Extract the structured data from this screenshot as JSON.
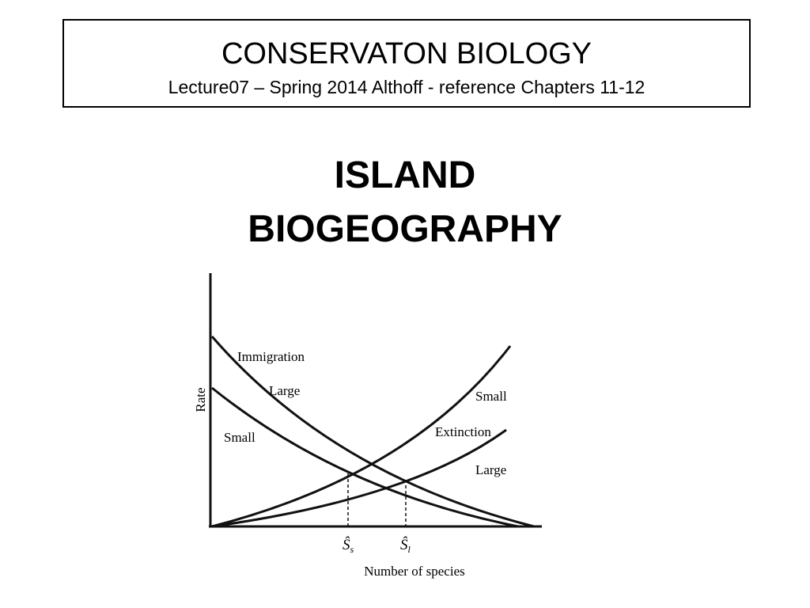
{
  "header": {
    "title": "CONSERVATON BIOLOGY",
    "subtitle": "Lecture07 – Spring 2014 Althoff  - reference  Chapters 11-12"
  },
  "heading": {
    "lines": [
      "ISLAND",
      "BIOGEOGRAPHY"
    ]
  },
  "diagram": {
    "y_axis_label": "Rate",
    "x_axis_label": "Number of species",
    "labels": {
      "immigration": "Immigration",
      "immigration_large": "Large",
      "immigration_small": "Small",
      "extinction": "Extinction",
      "extinction_small": "Small",
      "extinction_large": "Large"
    },
    "equilibria": [
      {
        "symbol": "Ŝ",
        "sub": "s"
      },
      {
        "symbol": "Ŝ",
        "sub": "l"
      }
    ]
  }
}
